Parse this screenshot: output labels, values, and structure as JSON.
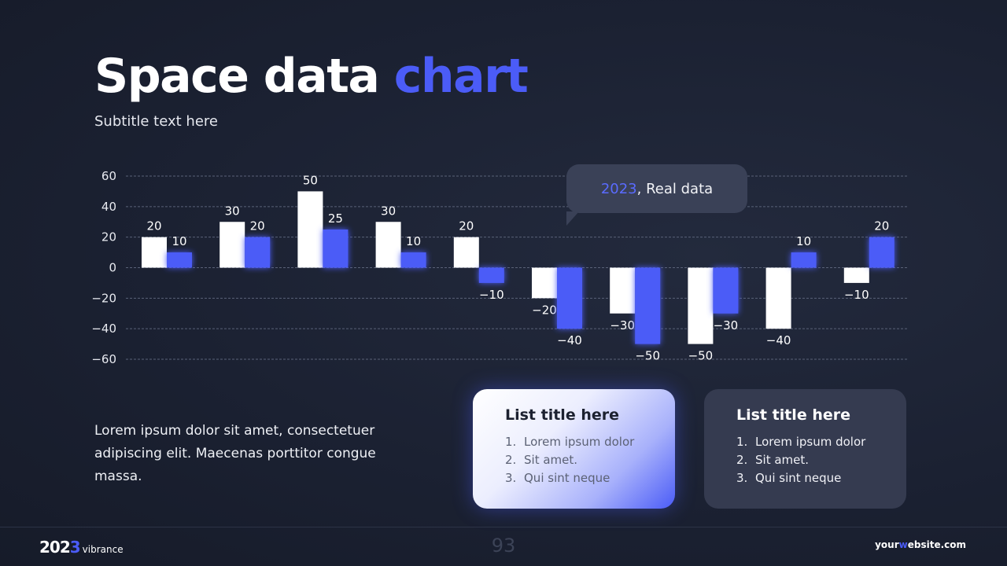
{
  "slide": {
    "title_main": "Space data ",
    "title_accent": "chart",
    "subtitle": "Subtitle text here",
    "body_text": "Lorem ipsum dolor sit amet, consectetuer adipiscing elit. Maecenas porttitor congue massa.",
    "page_number": "93"
  },
  "callout": {
    "year": "2023",
    "text": ", Real data"
  },
  "cards": [
    {
      "title": "List title here",
      "items": [
        {
          "num": "1.",
          "text": "Lorem ipsum dolor"
        },
        {
          "num": "2.",
          "text": "Sit amet."
        },
        {
          "num": "3.",
          "text": "Qui sint neque"
        }
      ]
    },
    {
      "title": "List title here",
      "items": [
        {
          "num": "1.",
          "text": "Lorem ipsum dolor"
        },
        {
          "num": "2.",
          "text": "Sit amet."
        },
        {
          "num": "3.",
          "text": "Qui sint neque"
        }
      ]
    }
  ],
  "footer": {
    "brand_year_a": "202",
    "brand_year_b": "3",
    "brand_name": "vibrance",
    "website_a": "your",
    "website_b": "w",
    "website_c": "ebsite.com"
  },
  "colors": {
    "accent": "#4b5cf7",
    "white_series": "#ffffff",
    "background": "#1b2132"
  },
  "chart_data": {
    "type": "bar",
    "categories": [
      "",
      "",
      "",
      "",
      "",
      "",
      "",
      "",
      "",
      ""
    ],
    "series": [
      {
        "color": "#ffffff",
        "values": [
          20,
          30,
          50,
          30,
          20,
          -20,
          -30,
          -50,
          -40,
          -10
        ]
      },
      {
        "color": "#4b5cf7",
        "values": [
          10,
          20,
          25,
          10,
          -10,
          -40,
          -50,
          -30,
          10,
          20
        ]
      }
    ],
    "ylim": [
      -60,
      60
    ],
    "yticks": [
      60,
      40,
      20,
      0,
      -20,
      -40,
      -60
    ],
    "grid": true
  }
}
